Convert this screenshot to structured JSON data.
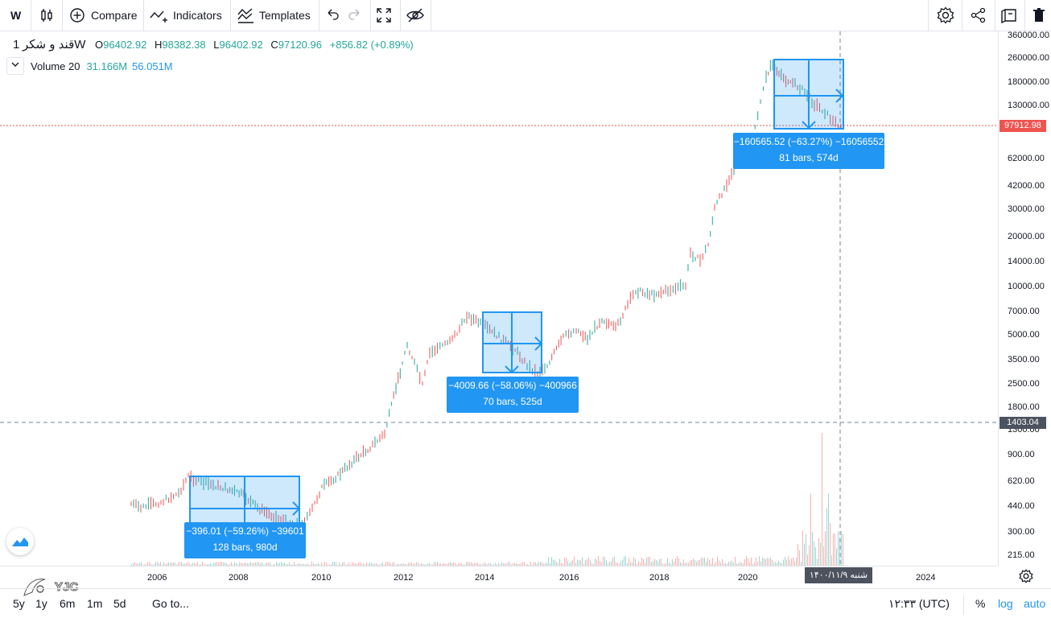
{
  "toolbar": {
    "symbol_short": "W",
    "compare": "Compare",
    "indicators": "Indicators",
    "templates": "Templates"
  },
  "legend": {
    "symbol": "قند و شکر",
    "interval": "1W",
    "o_label": "O",
    "open": "96402.92",
    "h_label": "H",
    "high": "98382.38",
    "l_label": "L",
    "low": "96402.92",
    "c_label": "C",
    "close": "97120.96",
    "change": "+856.82 (+0.89%)",
    "volume_name": "Volume 20",
    "volume_a": "31.166M",
    "volume_b": "56.051M"
  },
  "price_axis": {
    "ticks": [
      "360000.00",
      "260000.00",
      "180000.00",
      "130000.00",
      "62000.00",
      "42000.00",
      "30000.00",
      "20000.00",
      "14000.00",
      "10000.00",
      "7000.00",
      "5000.00",
      "3500.00",
      "2500.00",
      "1800.00",
      "1300.00",
      "900.00",
      "620.00",
      "440.00",
      "300.00",
      "215.00"
    ],
    "last_price_tag": "97912.98",
    "crosshair_price_tag": "1403.04"
  },
  "time_axis": {
    "labels": [
      "2006",
      "2008",
      "2010",
      "2012",
      "2014",
      "2016",
      "2018",
      "2020",
      "2024"
    ],
    "crosshair_date": "شنبه ۱۴۰۰/۱۱/۹"
  },
  "measures": [
    {
      "line1": "−396.01 (−59.26%) −39601",
      "line2": "128 bars, 980d"
    },
    {
      "line1": "−4009.66 (−58.06%) −400966",
      "line2": "70 bars, 525d"
    },
    {
      "line1": "−160565.52 (−63.27%) −16056552",
      "line2": "81 bars, 574d"
    }
  ],
  "bottom": {
    "ranges": [
      "5y",
      "1y",
      "6m",
      "1m",
      "5d"
    ],
    "goto": "Go to...",
    "clock": "۱۲:۳۳ (UTC)",
    "percent": "%",
    "log": "log",
    "auto": "auto"
  },
  "watermark": "YJC",
  "colors": {
    "up": "#26a69a",
    "down": "#ef5350",
    "accent": "#2196f3",
    "last_price": "#ef5350"
  }
}
